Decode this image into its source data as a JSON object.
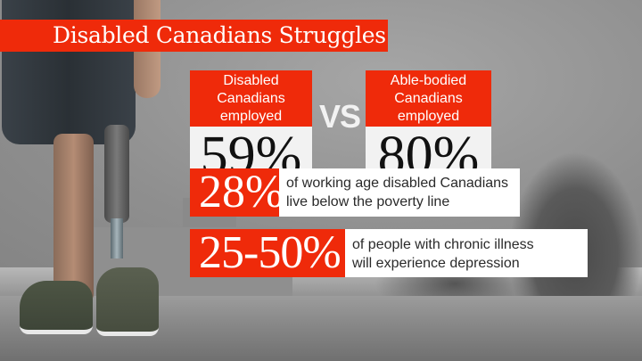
{
  "title": "Disabled Canadians Struggles",
  "comparison": {
    "left": {
      "label": "Disabled Canadians employed",
      "value": "59%"
    },
    "separator": "VS",
    "right": {
      "label": "Able-bodied Canadians employed",
      "value": "80%"
    }
  },
  "stats": [
    {
      "value": "28%",
      "line1": "of working age disabled Canadians",
      "line2": "live below the poverty line"
    },
    {
      "value": "25-50%",
      "line1": "of people with chronic illness",
      "line2": "will experience depression"
    }
  ],
  "colors": {
    "accent": "#ef2a0a",
    "card_bg": "#f2f2f2",
    "text_dark": "#111111"
  }
}
